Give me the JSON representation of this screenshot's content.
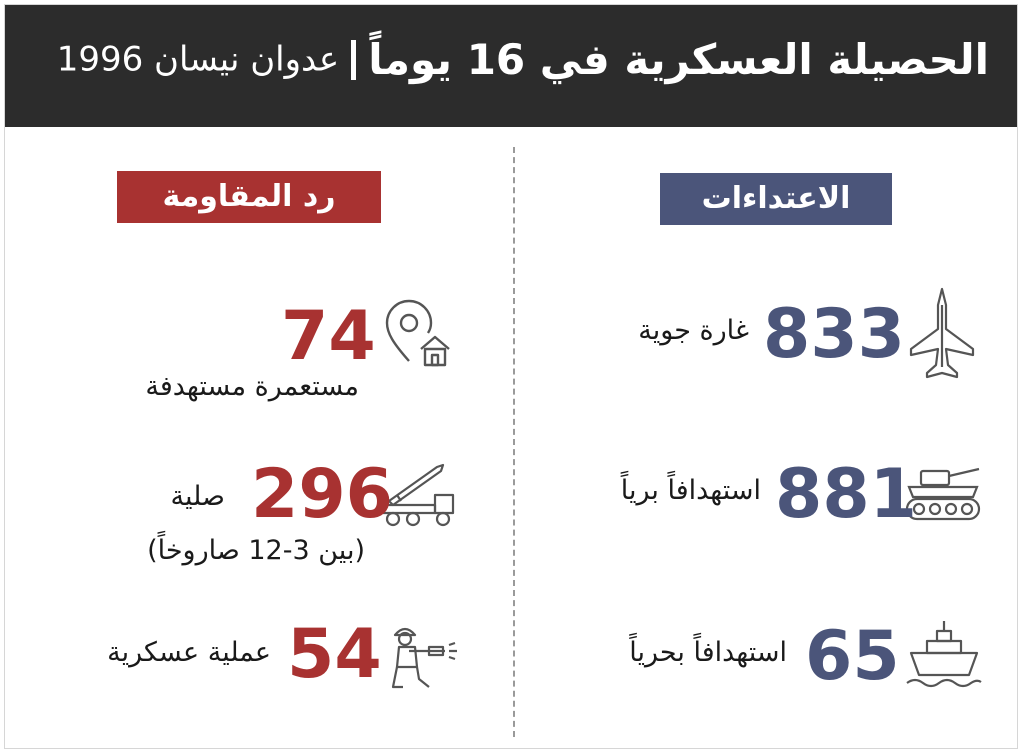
{
  "header": {
    "title_main": "الحصيلة العسكرية في 16 يوماً",
    "title_sub": "عدوان نيسان 1996"
  },
  "sections": {
    "aggression_label": "الاعتداءات",
    "resistance_label": "رد المقاومة"
  },
  "aggression": [
    {
      "value": "833",
      "label": "غارة جوية",
      "icon": "fighter-jet-icon"
    },
    {
      "value": "881",
      "label": "استهدافاً برياً",
      "icon": "tank-icon"
    },
    {
      "value": "65",
      "label": "استهدافاً بحرياً",
      "icon": "warship-icon"
    }
  ],
  "resistance": [
    {
      "value": "74",
      "label": "مستعمرة مستهدفة",
      "icon": "location-house-icon"
    },
    {
      "value": "296",
      "label": "صلية",
      "note": "(بين 3-12 صاروخاً)",
      "icon": "rocket-launcher-icon"
    },
    {
      "value": "54",
      "label": "عملية عسكرية",
      "icon": "soldier-icon"
    }
  ],
  "colors": {
    "header_bg": "#2c2c2c",
    "aggression_accent": "#4b557a",
    "resistance_accent": "#a83231"
  }
}
